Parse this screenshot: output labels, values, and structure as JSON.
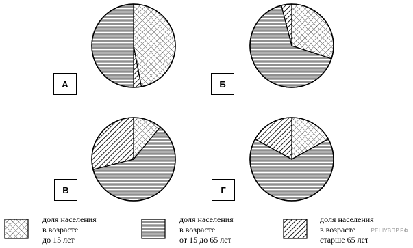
{
  "chart_data": [
    {
      "type": "pie",
      "label": "А",
      "slices": [
        {
          "category": "under_15",
          "value": 47
        },
        {
          "category": "over_65",
          "value": 3
        },
        {
          "category": "age_15_65",
          "value": 50
        }
      ]
    },
    {
      "type": "pie",
      "label": "Б",
      "slices": [
        {
          "category": "under_15",
          "value": 30
        },
        {
          "category": "age_15_65",
          "value": 66
        },
        {
          "category": "over_65",
          "value": 4
        }
      ]
    },
    {
      "type": "pie",
      "label": "В",
      "slices": [
        {
          "category": "under_15",
          "value": 11
        },
        {
          "category": "age_15_65",
          "value": 60
        },
        {
          "category": "over_65",
          "value": 29
        }
      ]
    },
    {
      "type": "pie",
      "label": "Г",
      "slices": [
        {
          "category": "under_15",
          "value": 17
        },
        {
          "category": "age_15_65",
          "value": 66
        },
        {
          "category": "over_65",
          "value": 17
        }
      ]
    }
  ],
  "legend": [
    {
      "category": "under_15",
      "label": "доля населения\nв возрасте\nдо 15 лет"
    },
    {
      "category": "age_15_65",
      "label": "доля населения\nв возрасте\nот 15 до 65 лет"
    },
    {
      "category": "over_65",
      "label": "доля населения\nв возрасте\nстарше 65 лет"
    }
  ],
  "watermark": "РЕШУВПР.РФ"
}
